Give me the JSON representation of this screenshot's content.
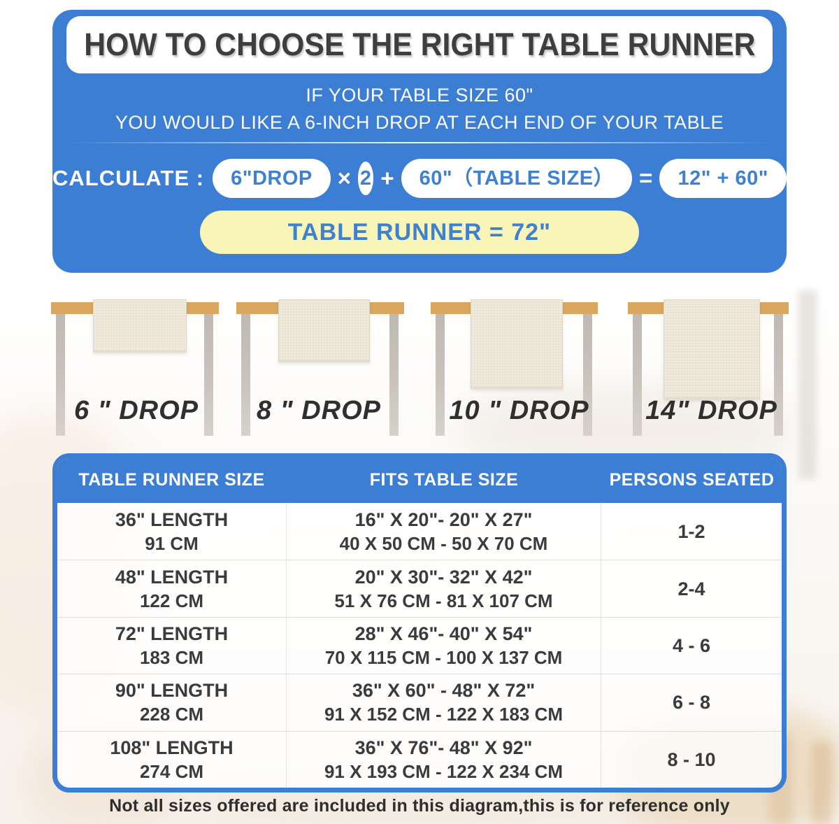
{
  "header": {
    "title": "HOW TO CHOOSE THE RIGHT TABLE RUNNER",
    "subtitle_line1": "IF YOUR TABLE SIZE 60\"",
    "subtitle_line2": "YOU WOULD LIKE A 6-INCH DROP AT EACH END OF YOUR TABLE",
    "calculate_label": "CALCULATE :",
    "formula": {
      "drop_pill": "6\"DROP",
      "times": "×",
      "multiplier": "2",
      "plus": "+",
      "table_size_pill": "60\"（TABLE SIZE）",
      "equals": "=",
      "result_pill": "12\" + 60\""
    },
    "result_banner": "TABLE RUNNER = 72\""
  },
  "illustrations": [
    {
      "label": "6 \" DROP"
    },
    {
      "label": "8 \" DROP"
    },
    {
      "label": "10 \" DROP"
    },
    {
      "label": "14\" DROP"
    }
  ],
  "size_chart": {
    "columns": [
      "TABLE RUNNER SIZE",
      "FITS TABLE SIZE",
      "PERSONS SEATED"
    ],
    "rows": [
      {
        "runner_in": "36\" LENGTH",
        "runner_cm": "91 CM",
        "fits_in": "16\" X 20\"- 20\" X 27\"",
        "fits_cm": "40 X 50 CM - 50 X 70 CM",
        "persons": "1-2"
      },
      {
        "runner_in": "48\" LENGTH",
        "runner_cm": "122 CM",
        "fits_in": "20\" X 30\"- 32\" X 42\"",
        "fits_cm": "51 X 76 CM - 81 X 107 CM",
        "persons": "2-4"
      },
      {
        "runner_in": "72\" LENGTH",
        "runner_cm": "183 CM",
        "fits_in": "28\" X 46\"- 40\" X 54\"",
        "fits_cm": "70 X 115 CM - 100 X 137 CM",
        "persons": "4 - 6"
      },
      {
        "runner_in": "90\" LENGTH",
        "runner_cm": "228 CM",
        "fits_in": "36\" X 60\" - 48\" X 72\"",
        "fits_cm": "91 X 152 CM - 122 X 183 CM",
        "persons": "6 - 8"
      },
      {
        "runner_in": "108\" LENGTH",
        "runner_cm": "274 CM",
        "fits_in": "36\" X 76\"- 48\" X 92\"",
        "fits_cm": "91 X 193 CM - 122 X 234 CM",
        "persons": "8 - 10"
      }
    ]
  },
  "footer_note": "Not all sizes offered are included in this diagram,this is for reference only",
  "colors": {
    "panel_blue": "#3b7ed3",
    "pill_text_blue": "#3f80d1",
    "result_yellow": "#f9f5b6",
    "tabletop_tan": "#d9a55f",
    "leg_gray": "#c9c3bc",
    "runner_cream": "#f1ecdf",
    "title_gray": "#3e3e3e"
  }
}
